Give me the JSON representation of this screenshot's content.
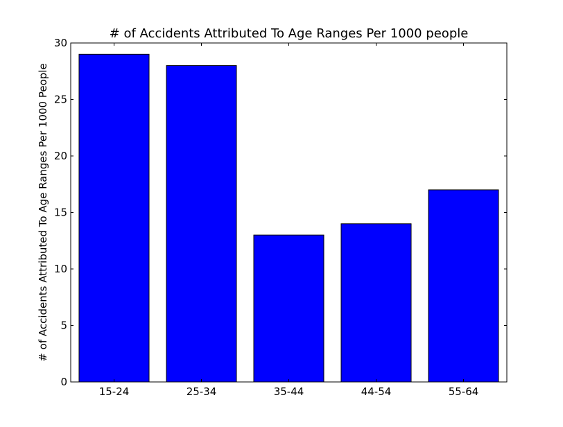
{
  "chart_data": {
    "type": "bar",
    "title": "# of Accidents Attributed To Age Ranges Per 1000 people",
    "xlabel": "",
    "ylabel": "# of Accidents Attributed To Age Ranges Per 1000 People",
    "categories": [
      "15-24",
      "25-34",
      "35-44",
      "44-54",
      "55-64"
    ],
    "values": [
      29,
      28,
      13,
      14,
      17
    ],
    "ylim": [
      0,
      30
    ],
    "yticks": [
      0,
      5,
      10,
      15,
      20,
      25,
      30
    ],
    "ytick_labels": [
      "0",
      "5",
      "10",
      "15",
      "20",
      "25",
      "30"
    ],
    "bar_color": "#0000ff",
    "edge_color": "#000000",
    "grid": false,
    "legend": "none"
  }
}
